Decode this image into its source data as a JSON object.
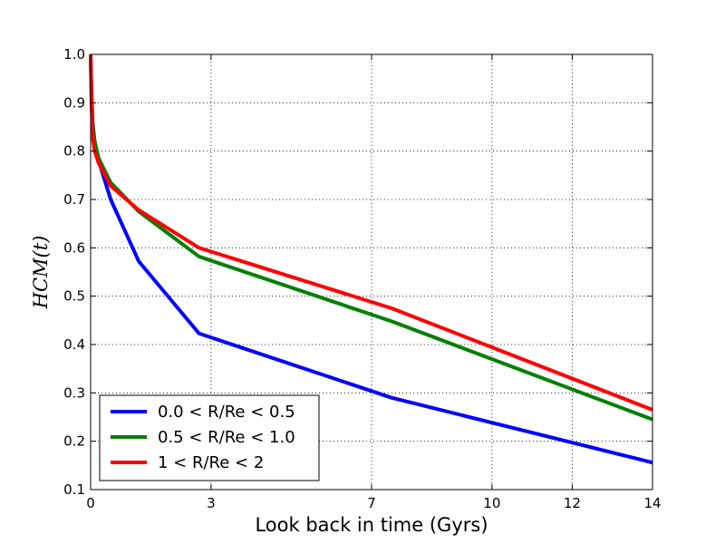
{
  "chart_data": {
    "type": "line",
    "xlabel": "Look back in time (Gyrs)",
    "ylabel": "HCM(t)",
    "xlim": [
      0,
      14
    ],
    "ylim": [
      0.1,
      1.0
    ],
    "xticks": [
      0,
      3,
      7,
      10,
      12,
      14
    ],
    "xtick_labels": [
      "0",
      "3",
      "7",
      "10",
      "12",
      "14"
    ],
    "yticks": [
      0.1,
      0.2,
      0.3,
      0.4,
      0.5,
      0.6,
      0.7,
      0.8,
      0.9,
      1.0
    ],
    "ytick_labels": [
      "0.1",
      "0.2",
      "0.3",
      "0.4",
      "0.5",
      "0.6",
      "0.7",
      "0.8",
      "0.9",
      "1.0"
    ],
    "grid": true,
    "legend_position": "lower-left",
    "series": [
      {
        "name": "0.0 < R/Re < 0.5",
        "color": "#0000ff",
        "x": [
          0.0,
          0.02,
          0.05,
          0.1,
          0.2,
          0.5,
          1.2,
          2.7,
          7.5,
          14.0
        ],
        "y": [
          1.0,
          0.93,
          0.86,
          0.82,
          0.78,
          0.7,
          0.572,
          0.423,
          0.29,
          0.156
        ]
      },
      {
        "name": "0.5 < R/Re < 1.0",
        "color": "#008000",
        "x": [
          0.0,
          0.02,
          0.05,
          0.1,
          0.2,
          0.5,
          1.2,
          2.7,
          7.5,
          14.0
        ],
        "y": [
          1.0,
          0.92,
          0.855,
          0.82,
          0.785,
          0.735,
          0.675,
          0.582,
          0.448,
          0.245
        ]
      },
      {
        "name": "1 < R/Re < 2",
        "color": "#ff0000",
        "x": [
          0.0,
          0.02,
          0.05,
          0.1,
          0.2,
          0.5,
          1.2,
          2.7,
          7.5,
          14.0
        ],
        "y": [
          1.0,
          0.9,
          0.83,
          0.8,
          0.775,
          0.728,
          0.678,
          0.6,
          0.475,
          0.265
        ]
      }
    ]
  }
}
